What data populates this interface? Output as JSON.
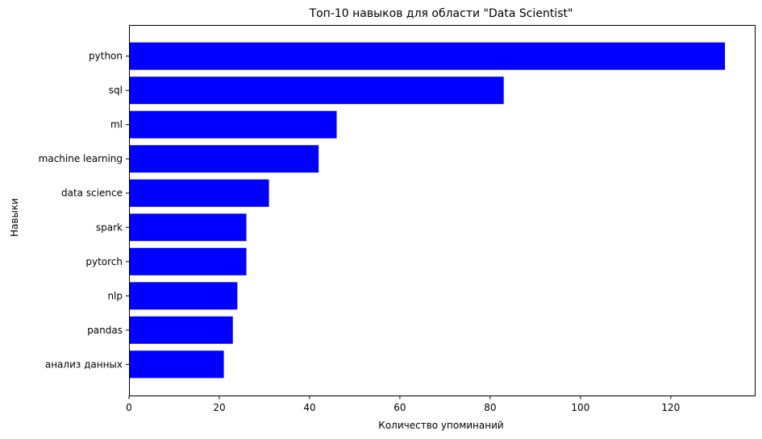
{
  "chart_data": {
    "type": "bar",
    "orientation": "horizontal",
    "title": "Топ-10 навыков для области \"Data Scientist\"",
    "xlabel": "Количество упоминаний",
    "ylabel": "Навыки",
    "categories": [
      "python",
      "sql",
      "ml",
      "machine learning",
      "data science",
      "spark",
      "pytorch",
      "nlp",
      "pandas",
      "анализ данных"
    ],
    "values": [
      132,
      83,
      46,
      42,
      31,
      26,
      26,
      24,
      23,
      21
    ],
    "xlim": [
      0,
      138.6
    ],
    "xticks": [
      0,
      20,
      40,
      60,
      80,
      100,
      120
    ],
    "bar_color": "#0000ff",
    "grid": false
  }
}
